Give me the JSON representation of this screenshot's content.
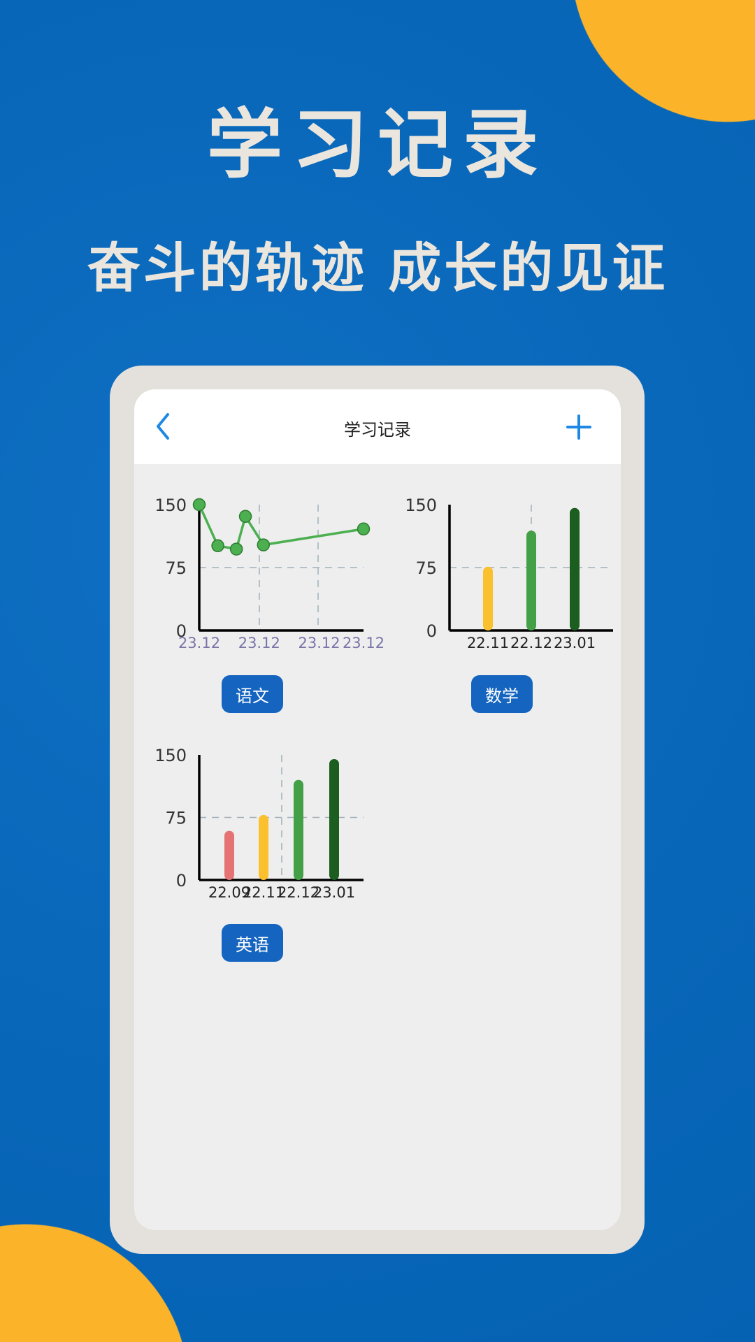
{
  "hero": {
    "title": "学习记录",
    "subtitle": "奋斗的轨迹 成长的见证"
  },
  "colors": {
    "background": "#0a68bb",
    "accent_circle": "#fbb42a",
    "button": "#1565c0",
    "icon": "#1e88e5"
  },
  "app": {
    "header": {
      "title": "学习记录",
      "back_icon": "chevron-left-icon",
      "add_icon": "plus-icon"
    },
    "subjects": [
      {
        "label": "语文"
      },
      {
        "label": "数学"
      },
      {
        "label": "英语"
      }
    ]
  },
  "chart_data": [
    {
      "type": "line",
      "subject": "语文",
      "ylim": [
        0,
        150
      ],
      "yticks": [
        "0",
        "75",
        "150"
      ],
      "xticks": [
        {
          "x": 0,
          "label": "23.12"
        },
        {
          "x": 1,
          "label": "23.12"
        },
        {
          "x": 2,
          "label": "23.12"
        },
        {
          "x": 2.74,
          "label": "23.12"
        }
      ],
      "xlim": [
        0,
        2.74
      ],
      "grid": true,
      "color": "#4caf50",
      "points": [
        {
          "x": 0,
          "y": 150
        },
        {
          "x": 0.31,
          "y": 101
        },
        {
          "x": 0.62,
          "y": 97
        },
        {
          "x": 0.77,
          "y": 136
        },
        {
          "x": 1.07,
          "y": 102
        },
        {
          "x": 2.74,
          "y": 121
        }
      ]
    },
    {
      "type": "bar",
      "subject": "数学",
      "ylim": [
        0,
        150
      ],
      "yticks": [
        "0",
        "75",
        "150"
      ],
      "grid": true,
      "categories": [
        "22.11",
        "22.12",
        "23.01"
      ],
      "values": [
        76,
        119,
        146
      ],
      "colors": [
        "#fbc02d",
        "#43a047",
        "#1b5e20"
      ]
    },
    {
      "type": "bar",
      "subject": "英语",
      "ylim": [
        0,
        150
      ],
      "yticks": [
        "0",
        "75",
        "150"
      ],
      "grid": true,
      "categories": [
        "22.09",
        "22.11",
        "22.12",
        "23.01"
      ],
      "values": [
        59,
        78,
        120,
        145
      ],
      "colors": [
        "#e57373",
        "#fbc02d",
        "#43a047",
        "#1b5e20"
      ]
    }
  ]
}
